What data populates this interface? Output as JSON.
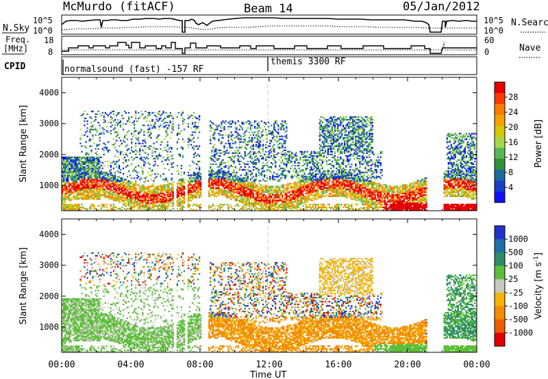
{
  "header": {
    "station": "McMurdo (fitACF)",
    "beam": "Beam 14",
    "date": "05/Jan/2012"
  },
  "aux_panels": {
    "noise": {
      "left_label": "N.Sky",
      "right_label": "N.Search",
      "left_ticks": [
        "10^5",
        "10^0"
      ],
      "right_ticks": [
        "10^5",
        "10^0"
      ]
    },
    "freq": {
      "left_label_1": "Freq.",
      "left_label_2": "[MHz]",
      "left_ticks": [
        "18",
        "8"
      ],
      "right_label": "Nave",
      "right_ticks": [
        "60",
        "0"
      ]
    },
    "cpid": {
      "label": "CPID",
      "modes": [
        {
          "text": "normalsound (fast) -157 RF",
          "start_hour": 0
        },
        {
          "text": "themis 3300 RF",
          "start_hour": 12
        }
      ]
    }
  },
  "chart_data": [
    {
      "type": "heatmap",
      "name": "power",
      "ylabel": "Slant Range [km]",
      "ylim": [
        180,
        4500
      ],
      "yticks": [
        "4000",
        "3000",
        "2000",
        "1000"
      ],
      "xlim_hours": [
        0,
        24
      ],
      "colorbar": {
        "label": "Power [dB]",
        "ticks": [
          "28",
          "24",
          "20",
          "16",
          "12",
          "8",
          "4"
        ],
        "colors": [
          "#e60000",
          "#ff3800",
          "#ff7a00",
          "#f4a000",
          "#d8c700",
          "#a6d84a",
          "#5ab55a",
          "#2f8f3a",
          "#1b6b9a",
          "#1a3fc8",
          "#1010ff"
        ]
      }
    },
    {
      "type": "heatmap",
      "name": "velocity",
      "ylabel": "Slant Range [km]",
      "ylim": [
        180,
        4500
      ],
      "yticks": [
        "4000",
        "3000",
        "2000",
        "1000"
      ],
      "xlim_hours": [
        0,
        24
      ],
      "colorbar": {
        "label": "Velocity [m s",
        "label_sup": "-1",
        "label_close": "]",
        "ticks": [
          "1000",
          "500",
          "100",
          "25",
          "-25",
          "-100",
          "-500",
          "-1000"
        ],
        "colors": [
          "#2233cc",
          "#1f6fa8",
          "#2e8c66",
          "#5cbf3a",
          "#c8c8bc",
          "#f4b400",
          "#f28c00",
          "#f05a00",
          "#e00000"
        ]
      }
    }
  ],
  "x_axis": {
    "label": "Time UT",
    "ticks": [
      "00:00",
      "04:00",
      "08:00",
      "12:00",
      "16:00",
      "20:00",
      "00:00"
    ]
  }
}
